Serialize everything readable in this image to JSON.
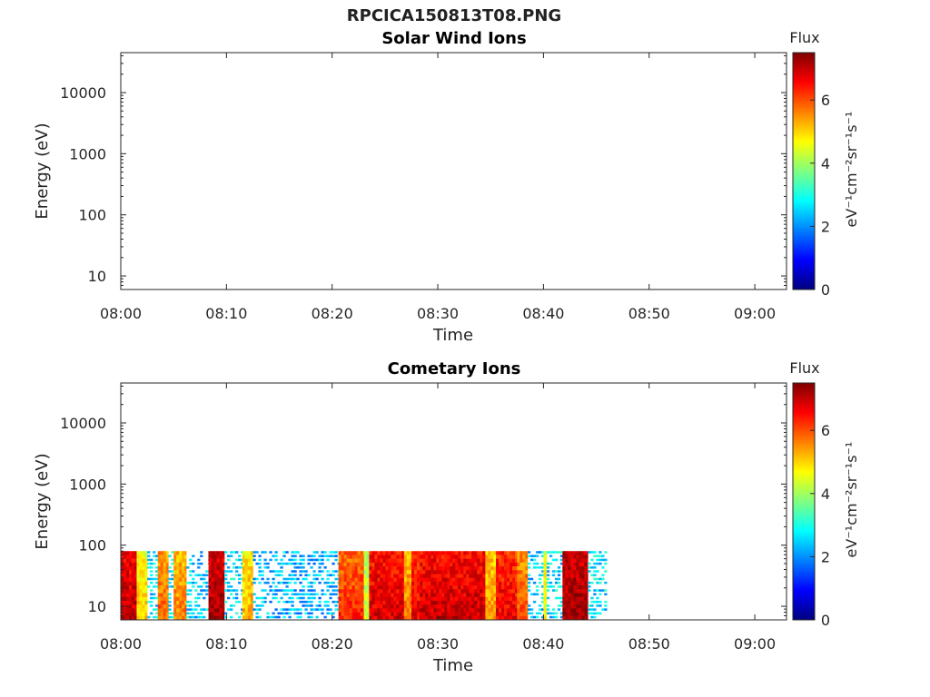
{
  "figure": {
    "title": "RPCICA150813T08.PNG"
  },
  "chart_data": [
    {
      "type": "heatmap",
      "title": "Solar Wind Ions",
      "xlabel": "Time",
      "ylabel": "Energy (eV)",
      "x_ticks": [
        "08:00",
        "08:10",
        "08:20",
        "08:30",
        "08:40",
        "08:50",
        "09:00"
      ],
      "y_ticks": [
        "10",
        "100",
        "1000",
        "10000"
      ],
      "y_scale": "log",
      "ylim": [
        6,
        45000
      ],
      "xlim": [
        "08:00",
        "09:03"
      ],
      "colorbar": {
        "label": "Flux",
        "units": "eV⁻¹cm⁻²sr⁻¹s⁻¹",
        "ticks": [
          "0",
          "2",
          "4",
          "6"
        ],
        "range": [
          0,
          7.5
        ]
      },
      "grid": false,
      "bands": []
    },
    {
      "type": "heatmap",
      "title": "Cometary Ions",
      "xlabel": "Time",
      "ylabel": "Energy (eV)",
      "x_ticks": [
        "08:00",
        "08:10",
        "08:20",
        "08:30",
        "08:40",
        "08:50",
        "09:00"
      ],
      "y_ticks": [
        "10",
        "100",
        "1000",
        "10000"
      ],
      "y_scale": "log",
      "ylim": [
        6,
        45000
      ],
      "xlim": [
        "08:00",
        "09:03"
      ],
      "colorbar": {
        "label": "Flux",
        "units": "eV⁻¹cm⁻²sr⁻¹s⁻¹",
        "ticks": [
          "0",
          "2",
          "4",
          "6"
        ],
        "range": [
          0,
          7.5
        ]
      },
      "grid": false,
      "energy_range_ev": [
        6,
        80
      ],
      "data_end_time": "08:46",
      "bands": [
        {
          "start": "08:00.0",
          "end": "08:01.5",
          "flux": 6.6
        },
        {
          "start": "08:01.5",
          "end": "08:02.5",
          "flux": 4.6
        },
        {
          "start": "08:02.5",
          "end": "08:03.5",
          "flux": 2.6
        },
        {
          "start": "08:03.5",
          "end": "08:04.5",
          "flux": 5.4
        },
        {
          "start": "08:04.5",
          "end": "08:05.0",
          "flux": 2.6
        },
        {
          "start": "08:05.0",
          "end": "08:06.2",
          "flux": 5.2
        },
        {
          "start": "08:06.2",
          "end": "08:08.3",
          "flux": 2.5
        },
        {
          "start": "08:08.3",
          "end": "08:09.8",
          "flux": 6.8
        },
        {
          "start": "08:09.8",
          "end": "08:11.5",
          "flux": 2.6
        },
        {
          "start": "08:11.5",
          "end": "08:12.5",
          "flux": 4.8
        },
        {
          "start": "08:12.5",
          "end": "08:20.6",
          "flux": 2.3
        },
        {
          "start": "08:20.6",
          "end": "08:23.0",
          "flux": 5.8
        },
        {
          "start": "08:23.0",
          "end": "08:23.5",
          "flux": 4.0
        },
        {
          "start": "08:23.5",
          "end": "08:26.8",
          "flux": 6.4
        },
        {
          "start": "08:26.8",
          "end": "08:27.5",
          "flux": 5.2
        },
        {
          "start": "08:27.5",
          "end": "08:28.3",
          "flux": 6.2
        },
        {
          "start": "08:28.3",
          "end": "08:34.5",
          "flux": 6.5
        },
        {
          "start": "08:34.5",
          "end": "08:35.5",
          "flux": 5.0
        },
        {
          "start": "08:35.5",
          "end": "08:37.5",
          "flux": 6.2
        },
        {
          "start": "08:37.5",
          "end": "08:38.5",
          "flux": 5.5
        },
        {
          "start": "08:38.5",
          "end": "08:40.0",
          "flux": 2.5
        },
        {
          "start": "08:40.0",
          "end": "08:40.3",
          "flux": 4.4
        },
        {
          "start": "08:40.3",
          "end": "08:41.8",
          "flux": 2.6
        },
        {
          "start": "08:41.8",
          "end": "08:44.2",
          "flux": 6.9
        },
        {
          "start": "08:44.2",
          "end": "08:46.0",
          "flux": 2.6
        }
      ]
    }
  ]
}
